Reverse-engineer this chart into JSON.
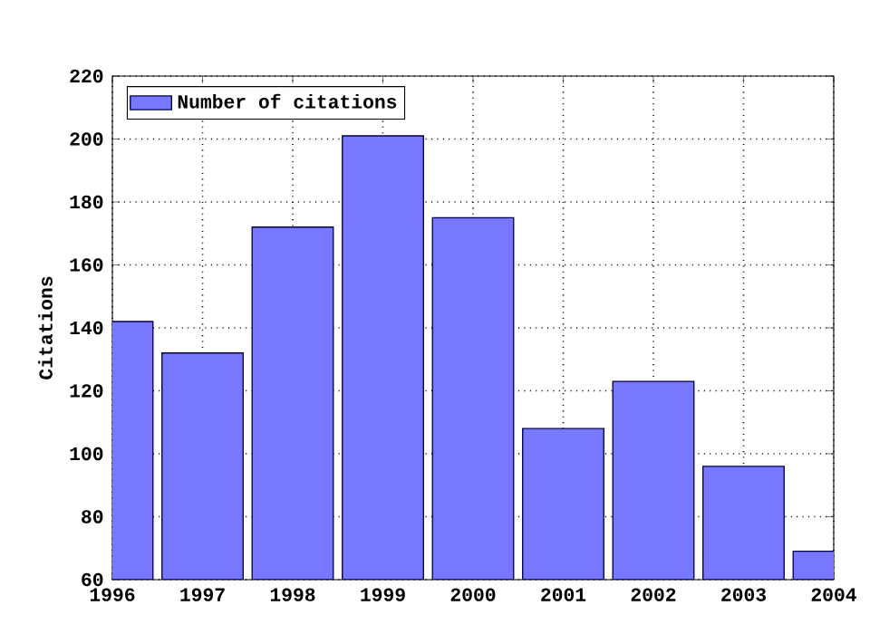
{
  "chart_data": {
    "type": "bar",
    "ylabel": "Citations",
    "x": [
      1996,
      1997,
      1998,
      1999,
      2000,
      2001,
      2002,
      2003,
      2004
    ],
    "series": [
      {
        "name": "Number of citations",
        "color": "#7777ff",
        "values": [
          142,
          132,
          172,
          201,
          175,
          108,
          123,
          96,
          69
        ]
      }
    ],
    "xlim": [
      1996,
      2004
    ],
    "xticks": [
      1996,
      1997,
      1998,
      1999,
      2000,
      2001,
      2002,
      2003,
      2004
    ],
    "ylim": [
      60,
      220
    ],
    "yticks": [
      60,
      80,
      100,
      120,
      140,
      160,
      180,
      200,
      220
    ],
    "grid": true,
    "legend": "top left"
  }
}
